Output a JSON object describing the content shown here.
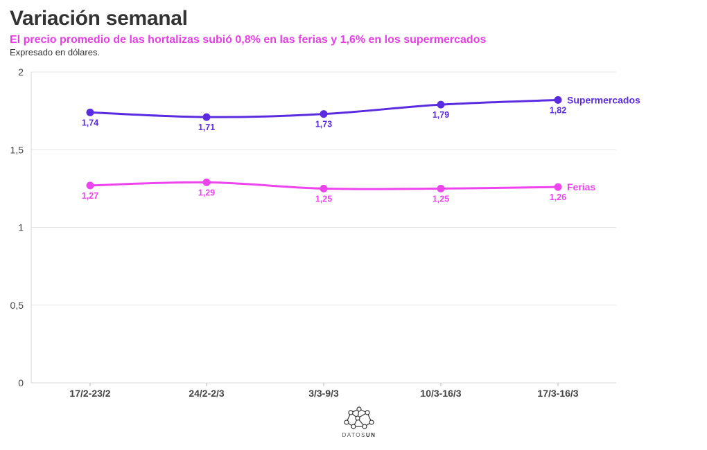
{
  "header": {
    "title": "Variación semanal",
    "subtitle": "El precio promedio de las hortalizas subió 0,8% en las ferias y 1,6% en los supermercados",
    "note": "Expresado en dólares."
  },
  "logo": {
    "text_light": "DATOS",
    "text_bold": "UN"
  },
  "chart_data": {
    "type": "line",
    "categories": [
      "17/2-23/2",
      "24/2-2/3",
      "3/3-9/3",
      "10/3-16/3",
      "17/3-16/3"
    ],
    "series": [
      {
        "name": "Supermercados",
        "values": [
          1.74,
          1.71,
          1.73,
          1.79,
          1.82
        ],
        "labels": [
          "1,74",
          "1,71",
          "1,73",
          "1,79",
          "1,82"
        ],
        "color": "#5b2be0"
      },
      {
        "name": "Ferias",
        "values": [
          1.27,
          1.29,
          1.25,
          1.25,
          1.26
        ],
        "labels": [
          "1,27",
          "1,29",
          "1,25",
          "1,25",
          "1,26"
        ],
        "color": "#ee44ee"
      }
    ],
    "ylim": [
      0,
      2
    ],
    "yticks": [
      0,
      0.5,
      1,
      1.5,
      2
    ],
    "ytick_labels": [
      "0",
      "0,5",
      "1",
      "1,5",
      "2"
    ],
    "grid": true,
    "legend": "direct labels at line ends"
  }
}
